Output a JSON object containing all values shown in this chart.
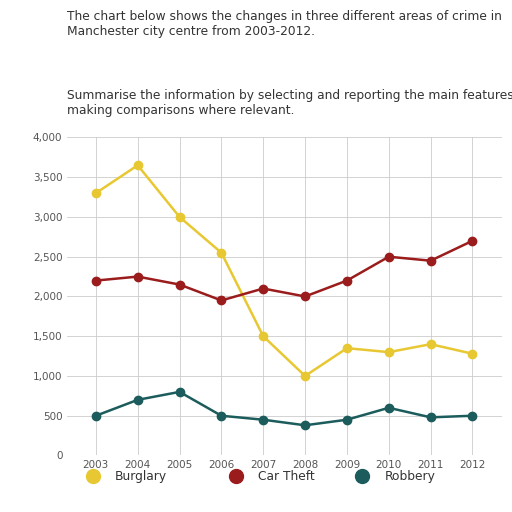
{
  "years": [
    2003,
    2004,
    2005,
    2006,
    2007,
    2008,
    2009,
    2010,
    2011,
    2012
  ],
  "burglary": [
    3300,
    3650,
    3000,
    2550,
    1500,
    1000,
    1350,
    1300,
    1400,
    1280
  ],
  "car_theft": [
    2200,
    2250,
    2150,
    1950,
    2100,
    2000,
    2200,
    2500,
    2450,
    2700
  ],
  "robbery": [
    500,
    700,
    800,
    500,
    450,
    380,
    450,
    600,
    480,
    500
  ],
  "burglary_color": "#E8C832",
  "car_theft_color": "#9B1C1C",
  "robbery_color": "#1C5C5C",
  "ylim": [
    0,
    4000
  ],
  "yticks": [
    0,
    500,
    1000,
    1500,
    2000,
    2500,
    3000,
    3500,
    4000
  ],
  "ytick_labels": [
    "0",
    "500",
    "1,000",
    "1,500",
    "2,000",
    "2,500",
    "3,000",
    "3,500",
    "4,000"
  ],
  "line1": "The chart below shows the changes in three different areas of crime in",
  "line2": "Manchester city centre from 2003-2012.",
  "line3": "",
  "line4": "Summarise the information by selecting and reporting the main features and",
  "line5": "making comparisons where relevant.",
  "legend_labels": [
    "Burglary",
    "Car Theft",
    "Robbery"
  ],
  "bg_color": "#FFFFFF",
  "grid_color": "#CCCCCC",
  "marker_size": 6,
  "line_width": 1.8,
  "text_color": "#333333"
}
